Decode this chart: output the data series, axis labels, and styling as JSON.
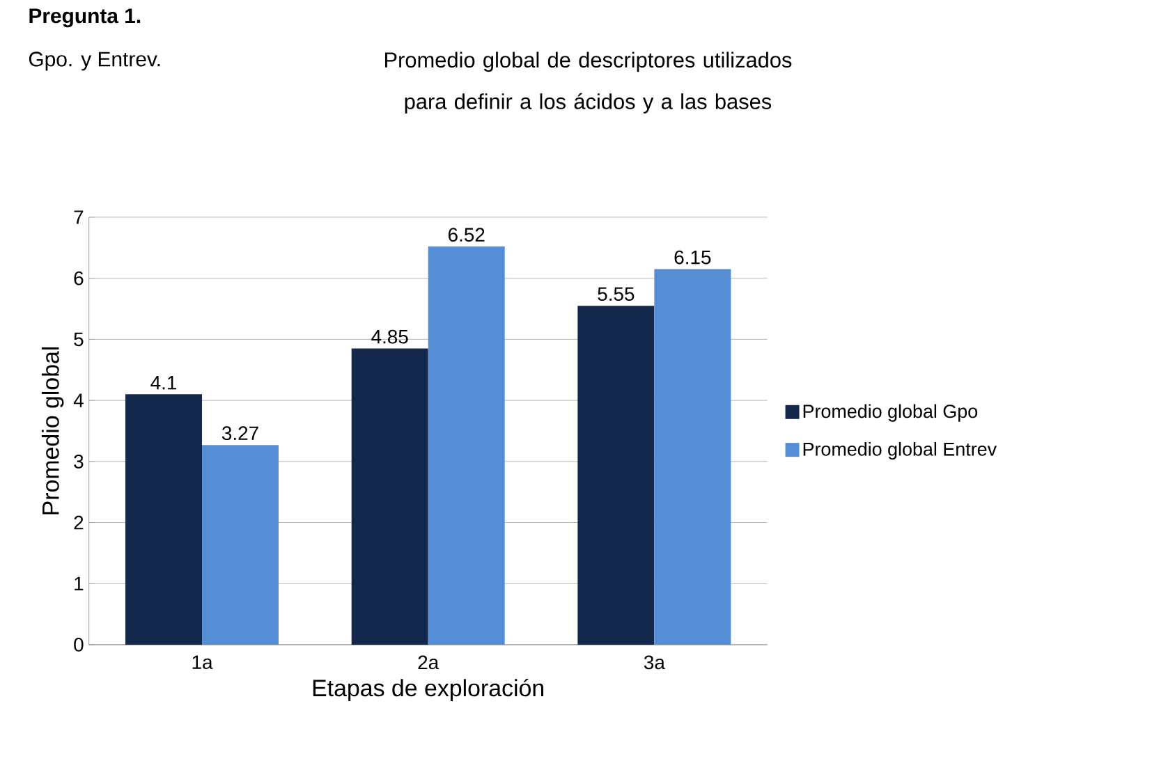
{
  "chart_data": {
    "type": "bar",
    "title": "Promedio global de descriptores  utilizados para definir a los ácidos y a las bases",
    "annotations": [
      "**Pregunta 1.**",
      "Gpo. y Entrev."
    ],
    "xlabel": "Etapas de exploración",
    "ylabel": "Promedio global",
    "categories": [
      "1a",
      "2a",
      "3a"
    ],
    "series": [
      {
        "name": "Promedio global Gpo",
        "color": "#14284b",
        "values": [
          4.1,
          4.85,
          5.55
        ]
      },
      {
        "name": "Promedio global Entrev",
        "color": "#558ed5",
        "values": [
          3.27,
          6.52,
          6.15
        ]
      }
    ],
    "ylim": [
      0,
      7
    ],
    "yticks": [
      0,
      1,
      2,
      3,
      4,
      5,
      6,
      7
    ],
    "grid": "y",
    "legend": "right",
    "data_labels": true
  }
}
